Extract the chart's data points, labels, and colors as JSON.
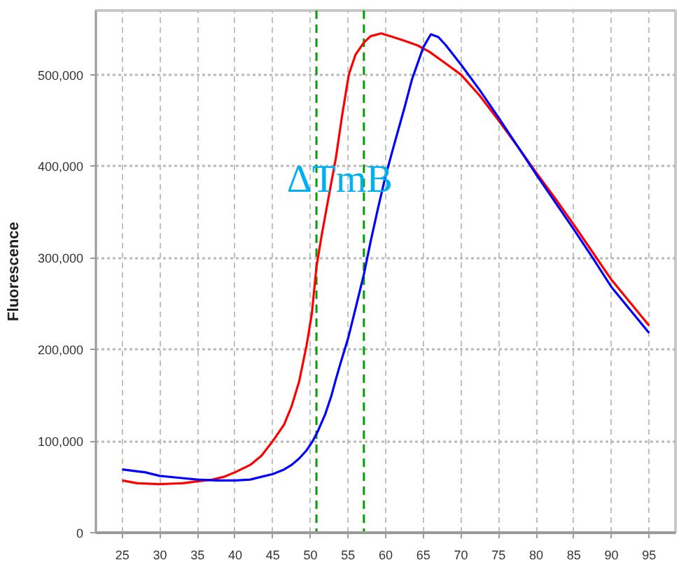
{
  "chart_data": {
    "type": "line",
    "ylabel": "Fluorescence",
    "xlim": [
      21.5,
      98.5
    ],
    "ylim": [
      0,
      570000
    ],
    "xticks": [
      25,
      30,
      35,
      40,
      45,
      50,
      55,
      60,
      65,
      70,
      75,
      80,
      85,
      90,
      95
    ],
    "yticks": [
      0,
      {
        "value": 100000,
        "label": "100,000"
      },
      {
        "value": 200000,
        "label": "200,000"
      },
      {
        "value": 300000,
        "label": "300,000"
      },
      {
        "value": 400000,
        "label": "400,000"
      },
      {
        "value": 500000,
        "label": "500,000"
      }
    ],
    "grid": true,
    "series": [
      {
        "color": "#ff0000",
        "x": [
          25,
          27,
          30,
          33,
          35,
          37,
          38.5,
          40,
          42,
          43.5,
          45,
          46.5,
          47.5,
          48.5,
          49.5,
          50.2,
          50.8,
          51.5,
          52.5,
          53.4,
          54.2,
          55.1,
          56,
          57.1,
          58,
          59.4,
          61,
          62.5,
          64.2,
          65.8,
          67.5,
          70,
          72.5,
          75,
          77.5,
          80,
          82.5,
          85,
          87.5,
          90,
          92.5,
          95
        ],
        "values": [
          57000,
          54000,
          53000,
          54000,
          56000,
          58000,
          61000,
          66000,
          74000,
          84000,
          100000,
          118000,
          138000,
          165000,
          205000,
          240000,
          290000,
          325000,
          370000,
          410000,
          455000,
          500000,
          522000,
          535000,
          542000,
          545000,
          541000,
          537000,
          532000,
          525000,
          515000,
          500000,
          477000,
          450000,
          422000,
          393000,
          365000,
          336000,
          306000,
          276000,
          251000,
          226000
        ]
      },
      {
        "color": "#0000ff",
        "x": [
          25,
          27,
          28,
          30,
          32.5,
          35,
          37.5,
          40,
          42,
          43.5,
          45,
          46.5,
          47.5,
          48.5,
          49.5,
          50.3,
          51,
          52,
          52.8,
          53.4,
          54,
          55,
          56,
          57.1,
          58,
          59,
          60,
          61,
          62.5,
          63.5,
          65,
          66,
          67,
          68,
          70,
          72.5,
          75,
          77.5,
          80,
          82.5,
          85,
          87.5,
          90,
          92.5,
          95
        ],
        "values": [
          69000,
          67000,
          66000,
          62000,
          60000,
          58000,
          57000,
          57000,
          58000,
          61000,
          64000,
          69000,
          74000,
          81000,
          90000,
          100000,
          111000,
          130000,
          150000,
          168000,
          185000,
          212000,
          245000,
          282000,
          318000,
          355000,
          390000,
          420000,
          464000,
          495000,
          530000,
          544000,
          541000,
          532000,
          511000,
          483000,
          453000,
          422000,
          391000,
          361000,
          331000,
          300000,
          268000,
          243000,
          218000
        ]
      }
    ],
    "ref_lines": [
      {
        "axis": "x",
        "value": 50.8,
        "color": "#00a000",
        "line_style": "dashed"
      },
      {
        "axis": "x",
        "value": 57.1,
        "color": "#00a000",
        "line_style": "dashed"
      }
    ],
    "annotations": [
      {
        "text": "ΔTmB",
        "x": 53.9,
        "y": 385000
      }
    ]
  }
}
